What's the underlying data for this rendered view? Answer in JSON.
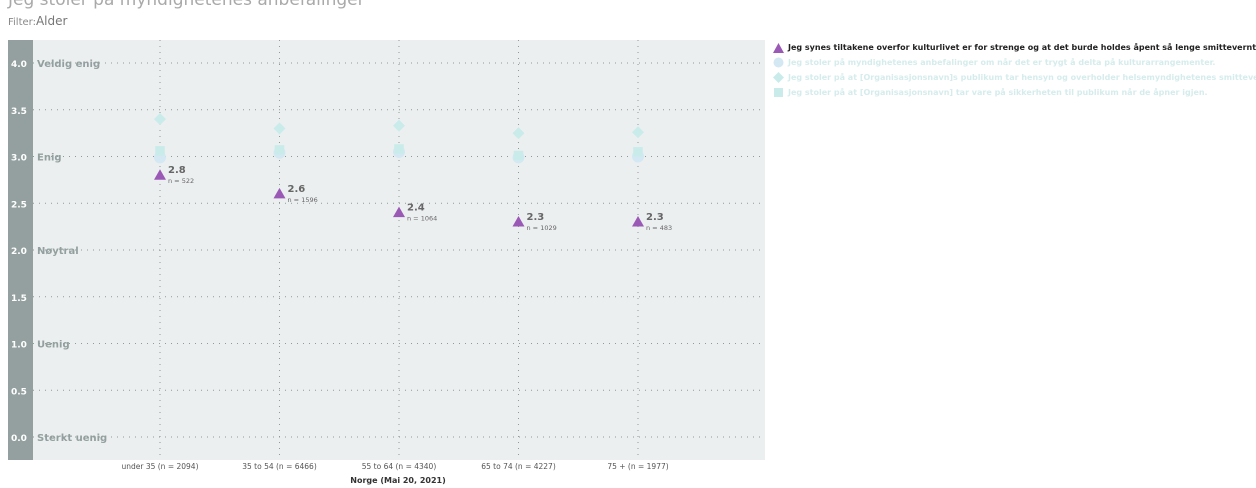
{
  "header": {
    "title_partial": "Jeg stoler på myndighetenes anbefalinger",
    "filter_label": "Filter:",
    "filter_value": "Alder"
  },
  "colors": {
    "primary": "#9b59b6",
    "muted_teal": "#c9ecea",
    "muted_blue": "#d3e8f3",
    "plot_bg": "#eceff0",
    "axis_strip": "#93a09f"
  },
  "chart_data": {
    "type": "scatter",
    "title": "",
    "xlabel": "Norge (Mai 20, 2021)",
    "ylabel": "",
    "ylim": [
      0,
      4
    ],
    "yticks": [
      {
        "value": 4.0,
        "tick": "4.0",
        "label": "Veldig enig"
      },
      {
        "value": 3.5,
        "tick": "3.5",
        "label": ""
      },
      {
        "value": 3.0,
        "tick": "3.0",
        "label": "Enig"
      },
      {
        "value": 2.5,
        "tick": "2.5",
        "label": ""
      },
      {
        "value": 2.0,
        "tick": "2.0",
        "label": "Nøytral"
      },
      {
        "value": 1.5,
        "tick": "1.5",
        "label": ""
      },
      {
        "value": 1.0,
        "tick": "1.0",
        "label": "Uenig"
      },
      {
        "value": 0.5,
        "tick": "0.5",
        "label": ""
      },
      {
        "value": 0.0,
        "tick": "0.0",
        "label": "Sterkt uenig"
      }
    ],
    "categories": [
      "under 35 (n = 2094)",
      "35 to 54 (n = 6466)",
      "55 to 64 (n = 4340)",
      "65 to 74 (n = 4227)",
      "75 + (n = 1977)"
    ],
    "grid": true,
    "legend_position": "top-right",
    "series": [
      {
        "name": "Jeg synes tiltakene overfor kulturlivet er for strenge og at det burde holdes åpent så lenge smitteverntiltak overholdes.",
        "marker": "triangle",
        "color": "#9b59b6",
        "highlighted": true,
        "values": [
          2.8,
          2.6,
          2.4,
          2.3,
          2.3
        ],
        "value_labels": [
          "2.8",
          "2.6",
          "2.4",
          "2.3",
          "2.3"
        ],
        "n_labels": [
          "n = 522",
          "n = 1596",
          "n = 1064",
          "n = 1029",
          "n = 483"
        ]
      },
      {
        "name": "Jeg stoler på myndighetenes anbefalinger om når det er trygt å delta på kulturarrangementer.",
        "marker": "circle",
        "color": "#d3e8f3",
        "highlighted": false,
        "values": [
          2.99,
          3.04,
          3.05,
          2.99,
          3.0
        ]
      },
      {
        "name": "Jeg stoler på at [Organisasjonsnavn]s publikum tar hensyn og overholder helsemyndighetenes smittevernregler .",
        "marker": "diamond",
        "color": "#c9ecea",
        "highlighted": false,
        "values": [
          3.4,
          3.3,
          3.33,
          3.25,
          3.26
        ]
      },
      {
        "name": "Jeg stoler på at [Organisasjonsnavn] tar vare på sikkerheten til publikum når de åpner igjen.",
        "marker": "square",
        "color": "#c9ecea",
        "highlighted": false,
        "values": [
          3.06,
          3.07,
          3.08,
          3.01,
          3.05
        ]
      }
    ]
  }
}
